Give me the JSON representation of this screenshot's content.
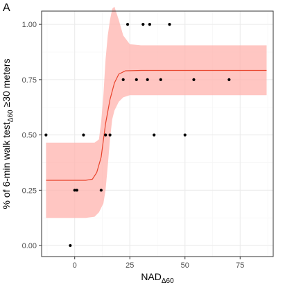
{
  "chart_data": {
    "type": "scatter",
    "panel_label": "A",
    "xlabel": {
      "main": "NAD",
      "sub": "Δ60"
    },
    "ylabel": {
      "pre": "% of 6-min walk test",
      "sub": "Δ60",
      "post": " ≥30 meters"
    },
    "xlim": [
      -15,
      90
    ],
    "ylim": [
      -0.05,
      1.06
    ],
    "x_ticks": [
      0,
      25,
      50,
      75
    ],
    "x_tick_labels": [
      "0",
      "25",
      "50",
      "75"
    ],
    "y_ticks": [
      0,
      0.25,
      0.5,
      0.75,
      1.0
    ],
    "y_tick_labels": [
      "0.00",
      "0.25",
      "0.50",
      "0.75",
      "1.00"
    ],
    "grid": true,
    "points": [
      {
        "x": -13,
        "y": 0.5
      },
      {
        "x": -2,
        "y": 0.0
      },
      {
        "x": 0,
        "y": 0.25
      },
      {
        "x": 1,
        "y": 0.25
      },
      {
        "x": 4,
        "y": 0.5
      },
      {
        "x": 12,
        "y": 0.25
      },
      {
        "x": 14,
        "y": 0.5
      },
      {
        "x": 16,
        "y": 0.5
      },
      {
        "x": 22,
        "y": 0.75
      },
      {
        "x": 24,
        "y": 1.0
      },
      {
        "x": 28,
        "y": 0.75
      },
      {
        "x": 31,
        "y": 1.0
      },
      {
        "x": 33,
        "y": 0.75
      },
      {
        "x": 34,
        "y": 1.0
      },
      {
        "x": 36,
        "y": 0.5
      },
      {
        "x": 39,
        "y": 0.75
      },
      {
        "x": 43,
        "y": 1.0
      },
      {
        "x": 50,
        "y": 0.5
      },
      {
        "x": 54,
        "y": 0.75
      },
      {
        "x": 70,
        "y": 0.75
      }
    ],
    "fit_line": [
      {
        "x": -13,
        "y": 0.295
      },
      {
        "x": 5,
        "y": 0.295
      },
      {
        "x": 8,
        "y": 0.3
      },
      {
        "x": 10,
        "y": 0.33
      },
      {
        "x": 12,
        "y": 0.4
      },
      {
        "x": 14,
        "y": 0.55
      },
      {
        "x": 16,
        "y": 0.66
      },
      {
        "x": 18,
        "y": 0.735
      },
      {
        "x": 20,
        "y": 0.775
      },
      {
        "x": 23,
        "y": 0.79
      },
      {
        "x": 30,
        "y": 0.792
      },
      {
        "x": 87,
        "y": 0.792
      }
    ],
    "confidence_band": [
      {
        "x": -13,
        "lo": 0.125,
        "hi": 0.465
      },
      {
        "x": 5,
        "lo": 0.125,
        "hi": 0.465
      },
      {
        "x": 9,
        "lo": 0.13,
        "hi": 0.465
      },
      {
        "x": 11,
        "lo": 0.15,
        "hi": 0.48
      },
      {
        "x": 12,
        "lo": 0.17,
        "hi": 0.56
      },
      {
        "x": 13,
        "lo": 0.19,
        "hi": 0.68
      },
      {
        "x": 14,
        "lo": 0.25,
        "hi": 0.84
      },
      {
        "x": 15,
        "lo": 0.36,
        "hi": 0.95
      },
      {
        "x": 16,
        "lo": 0.48,
        "hi": 1.02
      },
      {
        "x": 17,
        "lo": 0.57,
        "hi": 1.07
      },
      {
        "x": 18,
        "lo": 0.61,
        "hi": 1.08
      },
      {
        "x": 20,
        "lo": 0.65,
        "hi": 1.02
      },
      {
        "x": 22,
        "lo": 0.67,
        "hi": 0.95
      },
      {
        "x": 25,
        "lo": 0.68,
        "hi": 0.91
      },
      {
        "x": 30,
        "lo": 0.68,
        "hi": 0.905
      },
      {
        "x": 87,
        "lo": 0.68,
        "hi": 0.905
      }
    ],
    "colors": {
      "panel_background": "#ffffff",
      "panel_border": "#333333",
      "grid_major": "#ebebeb",
      "grid_minor": "#f5f5f5",
      "points": "#000000",
      "fit_line": "#e8432b",
      "band_fill": "#ffb3ad"
    }
  }
}
